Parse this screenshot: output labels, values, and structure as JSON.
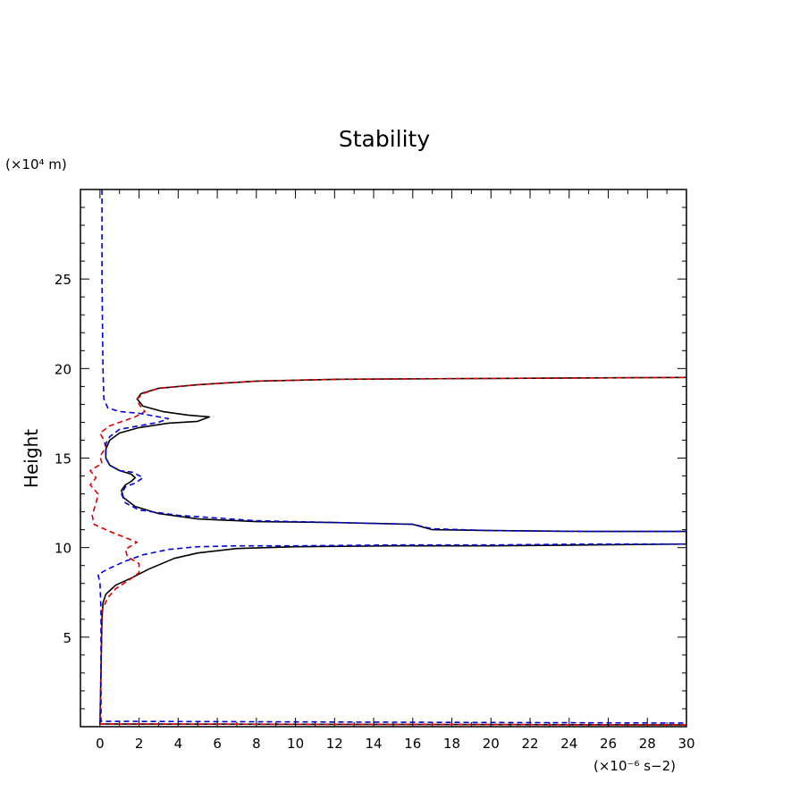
{
  "chart_data": {
    "type": "line",
    "title": "Stability",
    "xlabel": "",
    "ylabel": "Height",
    "x_unit": "(×10⁻⁶ s−2)",
    "y_unit": "(×10⁴ m)",
    "xlim": [
      -1,
      30
    ],
    "ylim": [
      0,
      30
    ],
    "x_ticks": [
      0,
      2,
      4,
      6,
      8,
      10,
      12,
      14,
      16,
      18,
      20,
      22,
      24,
      26,
      28,
      30
    ],
    "y_ticks": [
      5,
      10,
      15,
      20,
      25
    ],
    "grid": false,
    "series": [
      {
        "color": "#000000",
        "dash": "solid",
        "points": [
          [
            30,
            0.1
          ],
          [
            0,
            0.15
          ],
          [
            0,
            0.3
          ],
          [
            0.1,
            6.0
          ],
          [
            0.15,
            6.9
          ],
          [
            0.3,
            7.4
          ],
          [
            0.8,
            7.9
          ],
          [
            1.6,
            8.3
          ],
          [
            2.5,
            8.8
          ],
          [
            3.8,
            9.4
          ],
          [
            5,
            9.7
          ],
          [
            7,
            9.95
          ],
          [
            10,
            10.05
          ],
          [
            15,
            10.1
          ],
          [
            20,
            10.1
          ],
          [
            25,
            10.15
          ],
          [
            30,
            10.2
          ],
          [
            30,
            10.9
          ],
          [
            25,
            10.9
          ],
          [
            20,
            10.95
          ],
          [
            17,
            11.0
          ],
          [
            16,
            11.3
          ],
          [
            12,
            11.4
          ],
          [
            8,
            11.45
          ],
          [
            5,
            11.6
          ],
          [
            3,
            11.9
          ],
          [
            1.8,
            12.3
          ],
          [
            1.2,
            12.8
          ],
          [
            1.1,
            13.2
          ],
          [
            1.3,
            13.5
          ],
          [
            1.6,
            13.7
          ],
          [
            1.8,
            13.9
          ],
          [
            1.6,
            14.1
          ],
          [
            1.0,
            14.3
          ],
          [
            0.5,
            14.6
          ],
          [
            0.3,
            15.0
          ],
          [
            0.3,
            15.5
          ],
          [
            0.5,
            16.0
          ],
          [
            1.0,
            16.4
          ],
          [
            2.0,
            16.7
          ],
          [
            3.5,
            16.95
          ],
          [
            5.0,
            17.05
          ],
          [
            5.6,
            17.3
          ],
          [
            4.5,
            17.4
          ],
          [
            3.2,
            17.6
          ],
          [
            2.2,
            17.9
          ],
          [
            1.9,
            18.3
          ],
          [
            2.1,
            18.6
          ],
          [
            3.0,
            18.9
          ],
          [
            5,
            19.1
          ],
          [
            8,
            19.3
          ],
          [
            12,
            19.4
          ],
          [
            20,
            19.45
          ],
          [
            30,
            19.5
          ]
        ]
      },
      {
        "color": "#dd0000",
        "dash": "dashed",
        "points": [
          [
            30,
            0.1
          ],
          [
            0,
            0.15
          ],
          [
            0,
            0.3
          ],
          [
            0.1,
            6.5
          ],
          [
            0.4,
            7.2
          ],
          [
            0.8,
            7.7
          ],
          [
            1.5,
            8.2
          ],
          [
            2.0,
            8.6
          ],
          [
            2.0,
            9.1
          ],
          [
            1.4,
            9.5
          ],
          [
            1.3,
            9.9
          ],
          [
            1.9,
            10.3
          ],
          [
            1.2,
            10.6
          ],
          [
            0.5,
            10.9
          ],
          [
            -0.3,
            11.3
          ],
          [
            -0.4,
            11.8
          ],
          [
            -0.2,
            12.5
          ],
          [
            -0.1,
            13.0
          ],
          [
            -0.5,
            13.5
          ],
          [
            -0.2,
            13.9
          ],
          [
            -0.5,
            14.3
          ],
          [
            0.1,
            14.7
          ],
          [
            0.0,
            15.1
          ],
          [
            0.3,
            15.6
          ],
          [
            0.2,
            16.0
          ],
          [
            0.0,
            16.4
          ],
          [
            0.5,
            16.8
          ],
          [
            1.8,
            17.3
          ],
          [
            2.3,
            17.6
          ],
          [
            2.0,
            18.0
          ],
          [
            1.9,
            18.3
          ],
          [
            2.2,
            18.6
          ],
          [
            3.0,
            18.9
          ],
          [
            5,
            19.1
          ],
          [
            8,
            19.3
          ],
          [
            12,
            19.4
          ],
          [
            20,
            19.45
          ],
          [
            30,
            19.5
          ]
        ]
      },
      {
        "color": "#0000dd",
        "dash": "dashed",
        "points": [
          [
            0.1,
            30
          ],
          [
            0.1,
            25
          ],
          [
            0.15,
            20
          ],
          [
            0.2,
            18.3
          ],
          [
            0.4,
            17.8
          ],
          [
            1.0,
            17.6
          ],
          [
            2.0,
            17.5
          ],
          [
            3.5,
            17.2
          ],
          [
            3.0,
            17.0
          ],
          [
            1.0,
            16.6
          ],
          [
            0.5,
            16.2
          ],
          [
            0.3,
            15.8
          ],
          [
            0.3,
            15.0
          ],
          [
            0.5,
            14.6
          ],
          [
            1.0,
            14.3
          ],
          [
            1.7,
            14.2
          ],
          [
            2.2,
            13.9
          ],
          [
            1.8,
            13.6
          ],
          [
            1.3,
            13.4
          ],
          [
            1.1,
            13.0
          ],
          [
            1.3,
            12.5
          ],
          [
            2.0,
            12.1
          ],
          [
            4,
            11.8
          ],
          [
            8,
            11.5
          ],
          [
            12,
            11.4
          ],
          [
            16,
            11.3
          ],
          [
            17,
            11.05
          ],
          [
            20,
            10.95
          ],
          [
            25,
            10.9
          ],
          [
            30,
            10.9
          ],
          [
            30,
            10.2
          ],
          [
            25,
            10.2
          ],
          [
            20,
            10.15
          ],
          [
            15,
            10.15
          ],
          [
            10,
            10.1
          ],
          [
            7,
            10.1
          ],
          [
            5,
            10.05
          ],
          [
            3.5,
            9.9
          ],
          [
            2.2,
            9.6
          ],
          [
            1.2,
            9.2
          ],
          [
            0.4,
            8.8
          ],
          [
            -0.1,
            8.5
          ],
          [
            0.0,
            8.0
          ],
          [
            0.05,
            6.5
          ],
          [
            0.05,
            0.3
          ],
          [
            30,
            0.2
          ]
        ]
      }
    ]
  }
}
